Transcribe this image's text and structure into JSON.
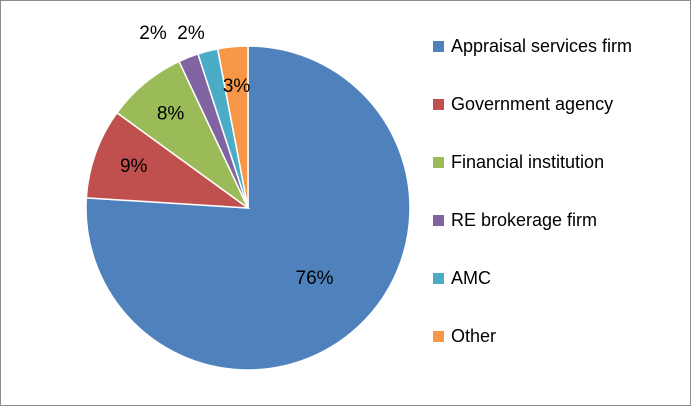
{
  "chart_data": {
    "type": "pie",
    "categories": [
      "Appraisal services firm",
      "Government agency",
      "Financial institution",
      "RE brokerage firm",
      "AMC",
      "Other"
    ],
    "values": [
      76,
      9,
      8,
      2,
      2,
      3
    ],
    "value_labels": [
      "76%",
      "9%",
      "8%",
      "2%",
      "2%",
      "3%"
    ],
    "colors": [
      "#4f81bd",
      "#c0504d",
      "#9bbb59",
      "#8064a2",
      "#4bacc6",
      "#f79646"
    ],
    "legend": "right"
  }
}
